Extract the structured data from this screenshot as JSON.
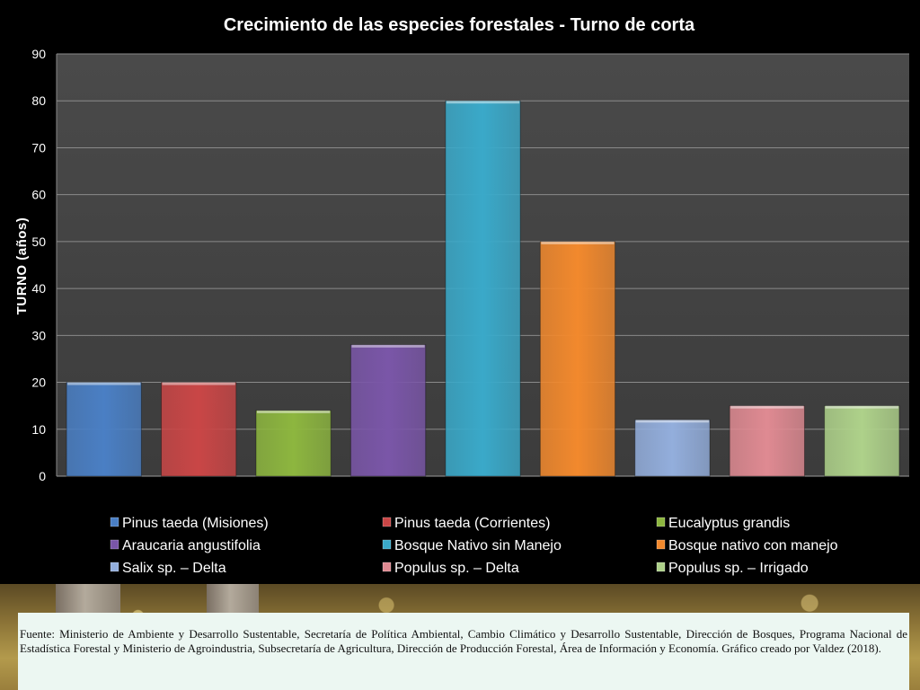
{
  "chart_data": {
    "type": "bar",
    "title": "Crecimiento de las especies forestales - Turno de corta",
    "ylabel": "TURNO (años)",
    "xlabel": "",
    "ylim": [
      0,
      90
    ],
    "yticks": [
      "0",
      "10",
      "20",
      "30",
      "40",
      "50",
      "60",
      "70",
      "80",
      "90"
    ],
    "grid": true,
    "legend_position": "bottom",
    "categories": [
      "Pinus taeda (Misiones)",
      "Pinus taeda (Corrientes)",
      "Eucalyptus grandis",
      "Araucaria angustifolia",
      "Bosque Nativo sin Manejo",
      "Bosque nativo con manejo",
      "Salix sp. – Delta",
      "Populus sp. – Delta",
      "Populus sp. – Irrigado"
    ],
    "values": [
      20,
      20,
      14,
      28,
      80,
      50,
      12,
      15,
      15
    ],
    "colors": [
      "#4a7fc4",
      "#c94646",
      "#8db63f",
      "#7a56a8",
      "#3aa9c9",
      "#f2892d",
      "#93aedc",
      "#df8a92",
      "#aed18a"
    ]
  },
  "source": {
    "text": "Fuente: Ministerio de Ambiente y Desarrollo Sustentable, Secretaría de Política Ambiental, Cambio Climático y Desarrollo Sustentable, Dirección de Bosques, Programa Nacional de Estadística Forestal y Ministerio de Agroindustria, Subsecretaría de Agricultura, Dirección de Producción Forestal,  Área de Información y Economía. Gráfico creado por Valdez (2018)."
  }
}
